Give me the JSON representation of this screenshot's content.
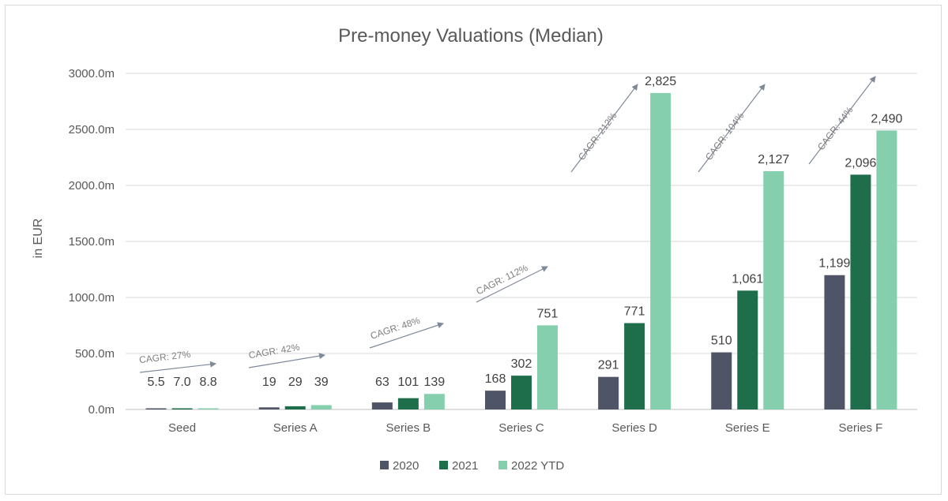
{
  "chart_data": {
    "type": "bar",
    "title": "Pre-money Valuations (Median)",
    "xlabel": "",
    "ylabel": "in EUR",
    "ylim": [
      0,
      3000
    ],
    "yticks": [
      0,
      500,
      1000,
      1500,
      2000,
      2500,
      3000
    ],
    "ytick_labels": [
      "0.0m",
      "500.0m",
      "1000.0m",
      "1500.0m",
      "2000.0m",
      "2500.0m",
      "3000.0m"
    ],
    "grid": true,
    "legend_position": "bottom",
    "categories": [
      "Seed",
      "Series A",
      "Series B",
      "Series C",
      "Series D",
      "Series E",
      "Series F"
    ],
    "series": [
      {
        "name": "2020",
        "color": "#4f5466",
        "values": [
          5.5,
          19,
          63,
          168,
          291,
          510,
          1199
        ],
        "labels": [
          "5.5",
          "19",
          "63",
          "168",
          "291",
          "510",
          "1,199"
        ]
      },
      {
        "name": "2021",
        "color": "#1f6e4b",
        "values": [
          7.0,
          29,
          101,
          302,
          771,
          1061,
          2096
        ],
        "labels": [
          "7.0",
          "29",
          "101",
          "302",
          "771",
          "1,061",
          "2,096"
        ]
      },
      {
        "name": "2022 YTD",
        "color": "#86cfae",
        "values": [
          8.8,
          39,
          139,
          751,
          2825,
          2127,
          2490
        ],
        "labels": [
          "8.8",
          "39",
          "139",
          "751",
          "2,825",
          "2,127",
          "2,490"
        ]
      }
    ],
    "annotations": [
      "CAGR: 27%",
      "CAGR: 42%",
      "CAGR: 48%",
      "CAGR: 112%",
      "CAGR: 212%",
      "CAGR: 104%",
      "CAGR: 44%"
    ]
  }
}
